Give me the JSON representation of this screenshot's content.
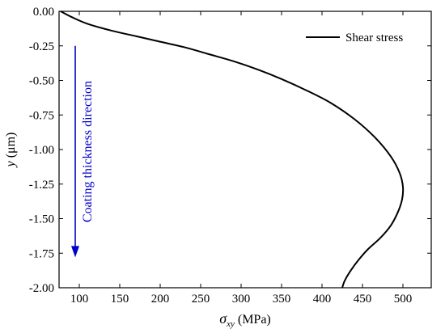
{
  "chart_data": {
    "type": "line",
    "xlabel_symbol": "σ",
    "xlabel_subscript": "xy",
    "xlabel_unit": " (MPa)",
    "ylabel_symbol": "y",
    "ylabel_unit": " (μm)",
    "xlim": [
      75,
      535
    ],
    "ylim": [
      -2.0,
      0.0
    ],
    "xticks": [
      100,
      150,
      200,
      250,
      300,
      350,
      400,
      450,
      500
    ],
    "xtick_labels": [
      "100",
      "150",
      "200",
      "250",
      "300",
      "350",
      "400",
      "450",
      "500"
    ],
    "yticks": [
      0.0,
      -0.25,
      -0.5,
      -0.75,
      -1.0,
      -1.25,
      -1.5,
      -1.75,
      -2.0
    ],
    "ytick_labels": [
      "0.00",
      "-0.25",
      "-0.50",
      "-0.75",
      "-1.00",
      "-1.25",
      "-1.50",
      "-1.75",
      "-2.00"
    ],
    "legend_position": "top-right",
    "grid": false,
    "series": [
      {
        "name": "Shear stress",
        "color": "#000000",
        "points": [
          [
            77,
            0.0
          ],
          [
            90,
            -0.04
          ],
          [
            110,
            -0.09
          ],
          [
            140,
            -0.14
          ],
          [
            170,
            -0.18
          ],
          [
            200,
            -0.22
          ],
          [
            230,
            -0.26
          ],
          [
            260,
            -0.31
          ],
          [
            290,
            -0.36
          ],
          [
            320,
            -0.42
          ],
          [
            350,
            -0.49
          ],
          [
            380,
            -0.57
          ],
          [
            410,
            -0.66
          ],
          [
            440,
            -0.78
          ],
          [
            465,
            -0.91
          ],
          [
            485,
            -1.05
          ],
          [
            496,
            -1.17
          ],
          [
            500,
            -1.27
          ],
          [
            499,
            -1.36
          ],
          [
            494,
            -1.45
          ],
          [
            485,
            -1.55
          ],
          [
            472,
            -1.64
          ],
          [
            457,
            -1.72
          ],
          [
            445,
            -1.8
          ],
          [
            435,
            -1.88
          ],
          [
            428,
            -1.95
          ],
          [
            425,
            -2.0
          ]
        ]
      }
    ],
    "annotations": [
      {
        "text": "Coating thickness direction",
        "color": "#0000cc",
        "arrow_from": [
          95,
          -0.25
        ],
        "arrow_to": [
          95,
          -1.78
        ]
      }
    ]
  }
}
